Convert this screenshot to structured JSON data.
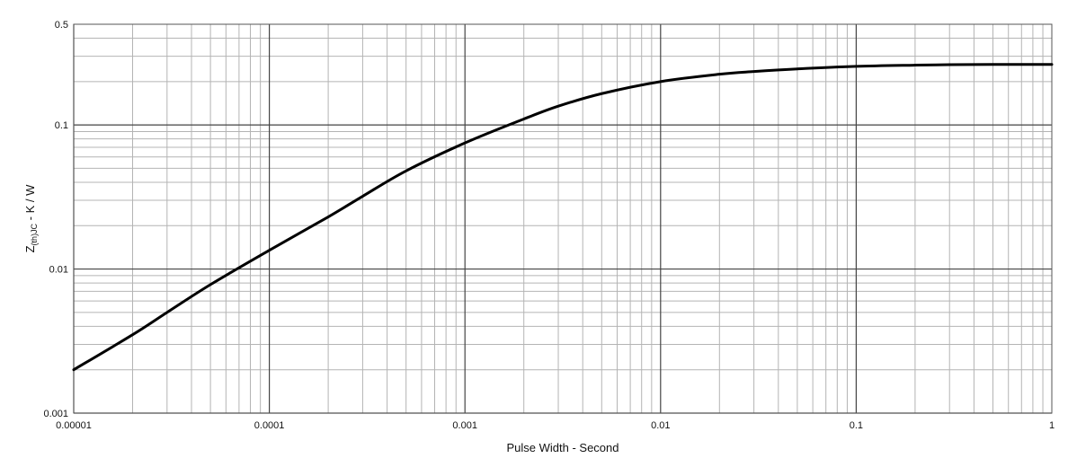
{
  "chart_data": {
    "type": "line",
    "title": "",
    "xlabel": "Pulse Width - Second",
    "ylabel": {
      "main": "Z",
      "subscript": "(th)JC",
      "rest": " - K / W"
    },
    "x_scale": "log",
    "y_scale": "log",
    "xlim": [
      1e-05,
      1
    ],
    "ylim": [
      0.001,
      0.5
    ],
    "grid": true,
    "legend": "none",
    "x_ticks": [
      {
        "value": 1e-05,
        "label": "0.00001"
      },
      {
        "value": 0.0001,
        "label": "0.0001"
      },
      {
        "value": 0.001,
        "label": "0.001"
      },
      {
        "value": 0.01,
        "label": "0.01"
      },
      {
        "value": 0.1,
        "label": "0.1"
      },
      {
        "value": 1,
        "label": "1"
      }
    ],
    "y_ticks": [
      {
        "value": 0.001,
        "label": "0.001"
      },
      {
        "value": 0.01,
        "label": "0.01"
      },
      {
        "value": 0.1,
        "label": "0.1"
      },
      {
        "value": 0.5,
        "label": "0.5"
      }
    ],
    "series": [
      {
        "color": "#000000",
        "x": [
          1e-05,
          2e-05,
          3e-05,
          5e-05,
          0.0001,
          0.0002,
          0.0003,
          0.0005,
          0.001,
          0.002,
          0.003,
          0.005,
          0.01,
          0.02,
          0.03,
          0.05,
          0.1,
          0.2,
          0.3,
          0.5,
          1
        ],
        "y": [
          0.002,
          0.0035,
          0.005,
          0.0078,
          0.0135,
          0.023,
          0.032,
          0.048,
          0.075,
          0.11,
          0.135,
          0.165,
          0.2,
          0.225,
          0.235,
          0.245,
          0.255,
          0.26,
          0.262,
          0.263,
          0.263
        ]
      }
    ]
  }
}
